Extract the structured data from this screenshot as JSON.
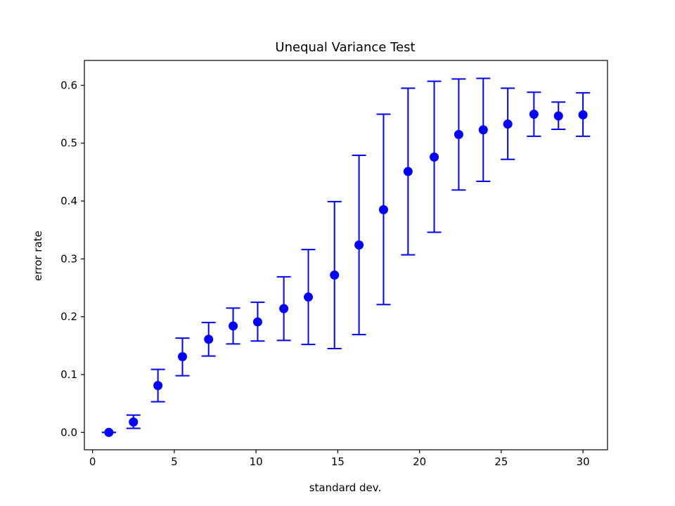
{
  "chart_data": {
    "type": "scatter",
    "title": "Unequal Variance Test",
    "xlabel": "standard dev.",
    "ylabel": "error rate",
    "xlim": [
      -0.5,
      31.5
    ],
    "ylim": [
      -0.03,
      0.643
    ],
    "xticks": [
      0,
      5,
      10,
      15,
      20,
      25,
      30
    ],
    "yticks": [
      0.0,
      0.1,
      0.2,
      0.3,
      0.4,
      0.5,
      0.6
    ],
    "grid": false,
    "color": "#0000ff",
    "series": [
      {
        "x": [
          1.0,
          2.5,
          4.0,
          5.5,
          7.1,
          8.6,
          10.1,
          11.7,
          13.2,
          14.8,
          16.3,
          17.8,
          19.3,
          20.9,
          22.4,
          23.9,
          25.4,
          27.0,
          28.5,
          30.0
        ],
        "y": [
          0.0,
          0.018,
          0.081,
          0.131,
          0.161,
          0.184,
          0.191,
          0.214,
          0.234,
          0.272,
          0.324,
          0.385,
          0.451,
          0.476,
          0.515,
          0.523,
          0.533,
          0.55,
          0.547,
          0.549
        ],
        "y_lower": [
          0.0,
          0.007,
          0.053,
          0.098,
          0.132,
          0.153,
          0.158,
          0.159,
          0.152,
          0.145,
          0.169,
          0.221,
          0.307,
          0.346,
          0.419,
          0.434,
          0.472,
          0.512,
          0.524,
          0.512
        ],
        "y_upper": [
          0.0,
          0.03,
          0.109,
          0.163,
          0.19,
          0.215,
          0.225,
          0.269,
          0.316,
          0.399,
          0.479,
          0.55,
          0.595,
          0.607,
          0.611,
          0.612,
          0.595,
          0.588,
          0.571,
          0.587
        ]
      }
    ]
  }
}
